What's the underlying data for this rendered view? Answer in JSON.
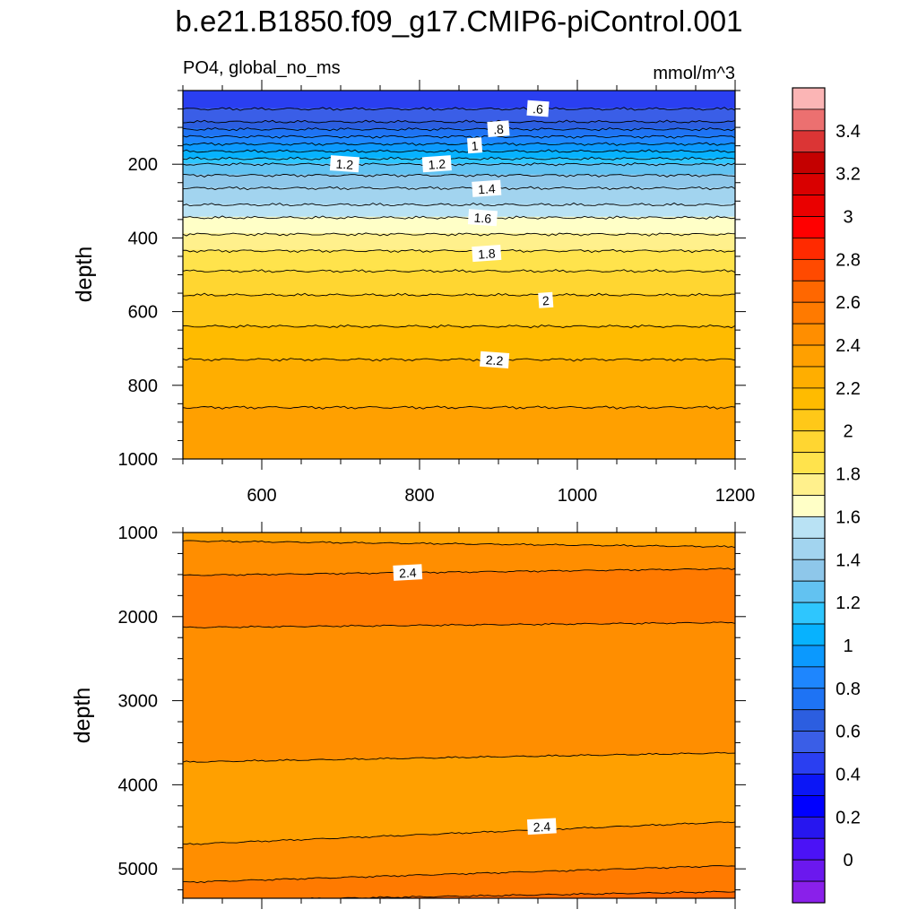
{
  "title": "b.e21.B1850.f09_g17.CMIP6-piControl.001",
  "left_subtitle": "PO4, global_no_ms",
  "right_subtitle": "mmol/m^3",
  "chart_data": [
    {
      "type": "heatmap",
      "panel": "upper",
      "ylabel": "depth",
      "xlabel": "",
      "xlim": [
        500,
        1200
      ],
      "ylim": [
        1000,
        0
      ],
      "x_ticks": [
        "600",
        "800",
        "1000",
        "1200"
      ],
      "y_ticks": [
        "200",
        "400",
        "600",
        "800",
        "1000"
      ],
      "contour_levels": [
        0.5,
        0.6,
        0.7,
        0.8,
        0.9,
        1.0,
        1.1,
        1.2,
        1.3,
        1.4,
        1.5,
        1.6,
        1.7,
        1.8,
        1.9,
        2.0,
        2.1,
        2.2,
        2.3
      ],
      "contour_depths": [
        50,
        85,
        105,
        125,
        145,
        165,
        185,
        200,
        230,
        265,
        310,
        345,
        390,
        435,
        490,
        555,
        640,
        730,
        860
      ],
      "contour_labels": [
        {
          "text": ".6",
          "x": 950,
          "y": 50
        },
        {
          "text": ".8",
          "x": 900,
          "y": 105
        },
        {
          "text": "1",
          "x": 870,
          "y": 150
        },
        {
          "text": "1.2",
          "x": 705,
          "y": 200
        },
        {
          "text": "1.2",
          "x": 822,
          "y": 200
        },
        {
          "text": "1.4",
          "x": 885,
          "y": 267
        },
        {
          "text": "1.6",
          "x": 880,
          "y": 346
        },
        {
          "text": "1.8",
          "x": 885,
          "y": 443
        },
        {
          "text": "2",
          "x": 960,
          "y": 570
        },
        {
          "text": "2.2",
          "x": 895,
          "y": 732
        }
      ]
    },
    {
      "type": "heatmap",
      "panel": "lower",
      "ylabel": "depth",
      "xlabel": "",
      "xlim": [
        500,
        1200
      ],
      "ylim": [
        5350,
        1000
      ],
      "x_ticks": [],
      "y_ticks": [
        "1000",
        "2000",
        "3000",
        "4000",
        "5000"
      ],
      "contour_levels": [
        2.3,
        2.4,
        2.5,
        2.4,
        2.3,
        2.4,
        2.5,
        2.6
      ],
      "contour_boundaries": [
        {
          "depth_left": 1100,
          "depth_right": 1170
        },
        {
          "depth_left": 1510,
          "depth_right": 1430
        },
        {
          "depth_left": 2130,
          "depth_right": 2070
        },
        {
          "depth_left": 3730,
          "depth_right": 3620
        },
        {
          "depth_left": 4710,
          "depth_right": 4440
        },
        {
          "depth_left": 5160,
          "depth_right": 4960
        },
        {
          "depth_left": 5380,
          "depth_right": 5270
        }
      ],
      "contour_labels": [
        {
          "text": "2.4",
          "x": 785,
          "y": 1480
        },
        {
          "text": "2.4",
          "x": 955,
          "y": 4500
        }
      ]
    }
  ],
  "colorbar": {
    "tick_labels": [
      "3.4",
      "3.2",
      "3",
      "2.8",
      "2.6",
      "2.4",
      "2.2",
      "2",
      "1.8",
      "1.6",
      "1.4",
      "1.2",
      "1",
      "0.8",
      "0.6",
      "0.4",
      "0.2",
      "0"
    ],
    "colors_top_to_bottom": [
      "#fbb5b5",
      "#ec7070",
      "#db3535",
      "#c40000",
      "#d90000",
      "#ea0000",
      "#ff0000",
      "#ff2a00",
      "#ff4a00",
      "#ff6700",
      "#ff7a00",
      "#ff8e00",
      "#ffa000",
      "#ffae00",
      "#ffbb00",
      "#ffc818",
      "#ffd631",
      "#ffe34c",
      "#fff08c",
      "#ffffc7",
      "#b9e2f4",
      "#a2d4ef",
      "#8ec7ea",
      "#62c2f1",
      "#2ec6fe",
      "#07b2fe",
      "#0b99fe",
      "#1e86fe",
      "#1e73f4",
      "#2c5ee0",
      "#3a5ee7",
      "#2a3ff1",
      "#0b16f6",
      "#0000ff",
      "#2716ef",
      "#4b12f6",
      "#6b18ee",
      "#8a20ea"
    ]
  },
  "colors": {
    "contour_line": "#000000",
    "frame": "#000000",
    "label_box": "#ffffff"
  }
}
